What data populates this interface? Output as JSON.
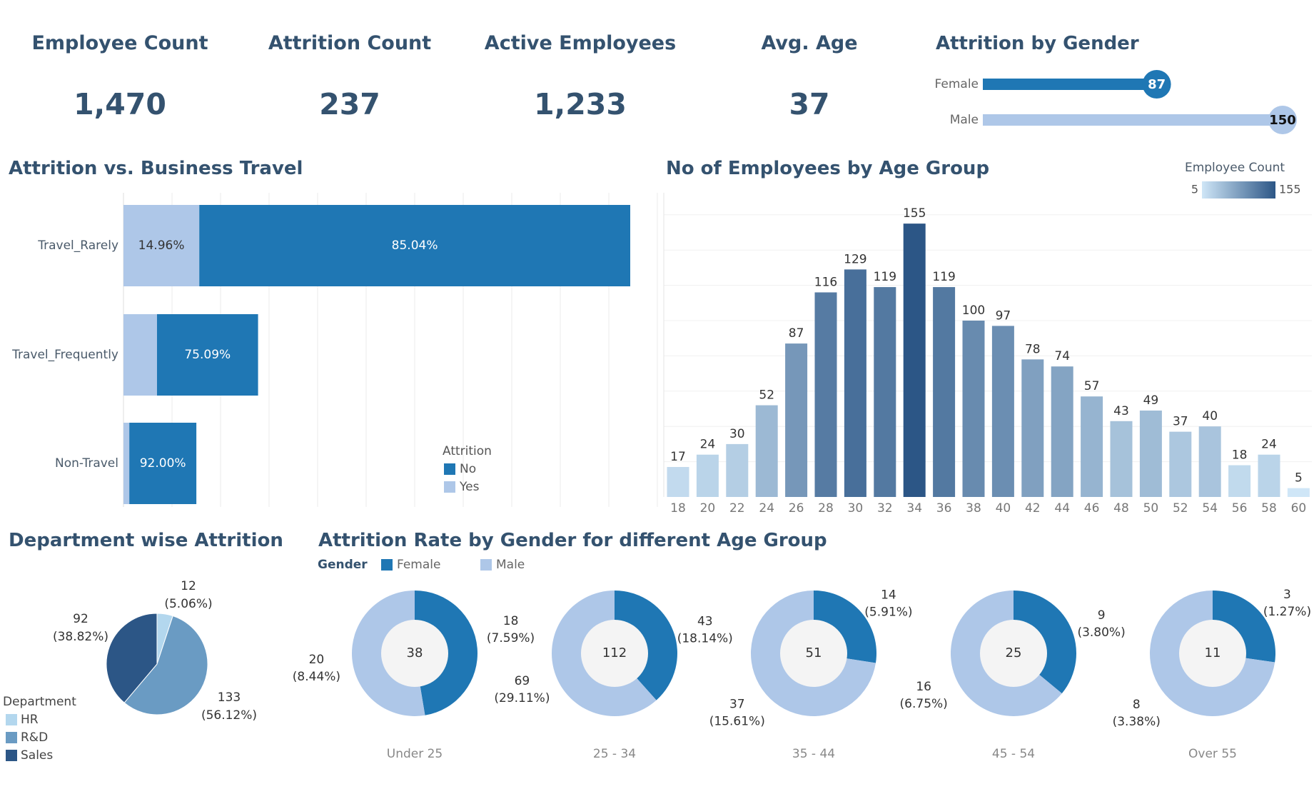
{
  "colors": {
    "title": "#34526f",
    "no": "#1f77b4",
    "yes": "#aec7e8",
    "female": "#1f77b4",
    "male": "#aec7e8",
    "hr": "#b3d7ee",
    "rnd": "#6a9bc3",
    "sales": "#2c5686",
    "donut_center": "#f4f4f4"
  },
  "kpis": [
    {
      "title": "Employee Count",
      "value": "1,470"
    },
    {
      "title": "Attrition Count",
      "value": "237"
    },
    {
      "title": "Active Employees",
      "value": "1,233"
    },
    {
      "title": "Avg. Age",
      "value": "37"
    }
  ],
  "sections": {
    "attrition_by_gender": "Attrition by Gender",
    "business_travel": "Attrition vs. Business Travel",
    "age_group": "No of Employees by Age Group",
    "department": "Department wise Attrition",
    "gender_age": "Attrition Rate by Gender for different Age Group"
  },
  "chart_data": [
    {
      "id": "attrition_by_gender",
      "type": "bar",
      "title": "Attrition by Gender",
      "categories": [
        "Female",
        "Male"
      ],
      "values": [
        87,
        150
      ],
      "xlim": [
        0,
        150
      ]
    },
    {
      "id": "business_travel",
      "type": "bar",
      "orientation": "horizontal",
      "stacked": true,
      "title": "Attrition vs. Business Travel",
      "categories": [
        "Travel_Rarely",
        "Travel_Frequently",
        "Non-Travel"
      ],
      "series": [
        {
          "name": "Yes",
          "values": [
            156,
            69,
            12
          ],
          "labels": [
            "14.96%",
            "",
            ""
          ]
        },
        {
          "name": "No",
          "values": [
            887,
            208,
            138
          ],
          "labels": [
            "85.04%",
            "75.09%",
            "92.00%"
          ]
        }
      ],
      "xlim": [
        0,
        1043
      ],
      "legend": {
        "title": "Attrition",
        "entries": [
          "No",
          "Yes"
        ],
        "position": "bottom-right"
      }
    },
    {
      "id": "age_group",
      "type": "bar",
      "title": "No of Employees by Age Group",
      "categories": [
        "18",
        "20",
        "22",
        "24",
        "26",
        "28",
        "30",
        "32",
        "34",
        "36",
        "38",
        "40",
        "42",
        "44",
        "46",
        "48",
        "50",
        "52",
        "54",
        "56",
        "58",
        "60"
      ],
      "values": [
        17,
        24,
        30,
        52,
        87,
        116,
        129,
        119,
        155,
        119,
        100,
        97,
        78,
        74,
        57,
        43,
        49,
        37,
        40,
        18,
        24,
        5
      ],
      "ylim": [
        0,
        170
      ],
      "color_scale": {
        "title": "Employee Count",
        "min": 5,
        "max": 155,
        "min_label": "5",
        "max_label": "155",
        "low": "#cfe6f7",
        "high": "#2c5686"
      }
    },
    {
      "id": "department",
      "type": "pie",
      "title": "Department wise Attrition",
      "categories": [
        "HR",
        "R&D",
        "Sales"
      ],
      "values": [
        12,
        133,
        92
      ],
      "labels": [
        {
          "count": "12",
          "pct": "(5.06%)"
        },
        {
          "count": "133",
          "pct": "(56.12%)"
        },
        {
          "count": "92",
          "pct": "(38.82%)"
        }
      ],
      "legend": {
        "title": "Department",
        "entries": [
          "HR",
          "R&D",
          "Sales"
        ],
        "position": "bottom-left"
      }
    },
    {
      "id": "gender_age",
      "type": "pie",
      "title": "Attrition Rate by Gender for different Age Group",
      "legend": {
        "title": "Gender",
        "entries": [
          "Female",
          "Male"
        ],
        "position": "top-left"
      },
      "groups": [
        {
          "name": "Under 25",
          "total": "38",
          "female": 18,
          "male": 20,
          "female_label": {
            "count": "18",
            "pct": "(7.59%)"
          },
          "male_label": {
            "count": "20",
            "pct": "(8.44%)"
          }
        },
        {
          "name": "25 - 34",
          "total": "112",
          "female": 43,
          "male": 69,
          "female_label": {
            "count": "43",
            "pct": "(18.14%)"
          },
          "male_label": {
            "count": "69",
            "pct": "(29.11%)"
          }
        },
        {
          "name": "35 - 44",
          "total": "51",
          "female": 14,
          "male": 37,
          "female_label": {
            "count": "14",
            "pct": "(5.91%)"
          },
          "male_label": {
            "count": "37",
            "pct": "(15.61%)"
          }
        },
        {
          "name": "45 - 54",
          "total": "25",
          "female": 9,
          "male": 16,
          "female_label": {
            "count": "9",
            "pct": "(3.80%)"
          },
          "male_label": {
            "count": "16",
            "pct": "(6.75%)"
          }
        },
        {
          "name": "Over 55",
          "total": "11",
          "female": 3,
          "male": 8,
          "female_label": {
            "count": "3",
            "pct": "(1.27%)"
          },
          "male_label": {
            "count": "8",
            "pct": "(3.38%)"
          }
        }
      ]
    }
  ]
}
